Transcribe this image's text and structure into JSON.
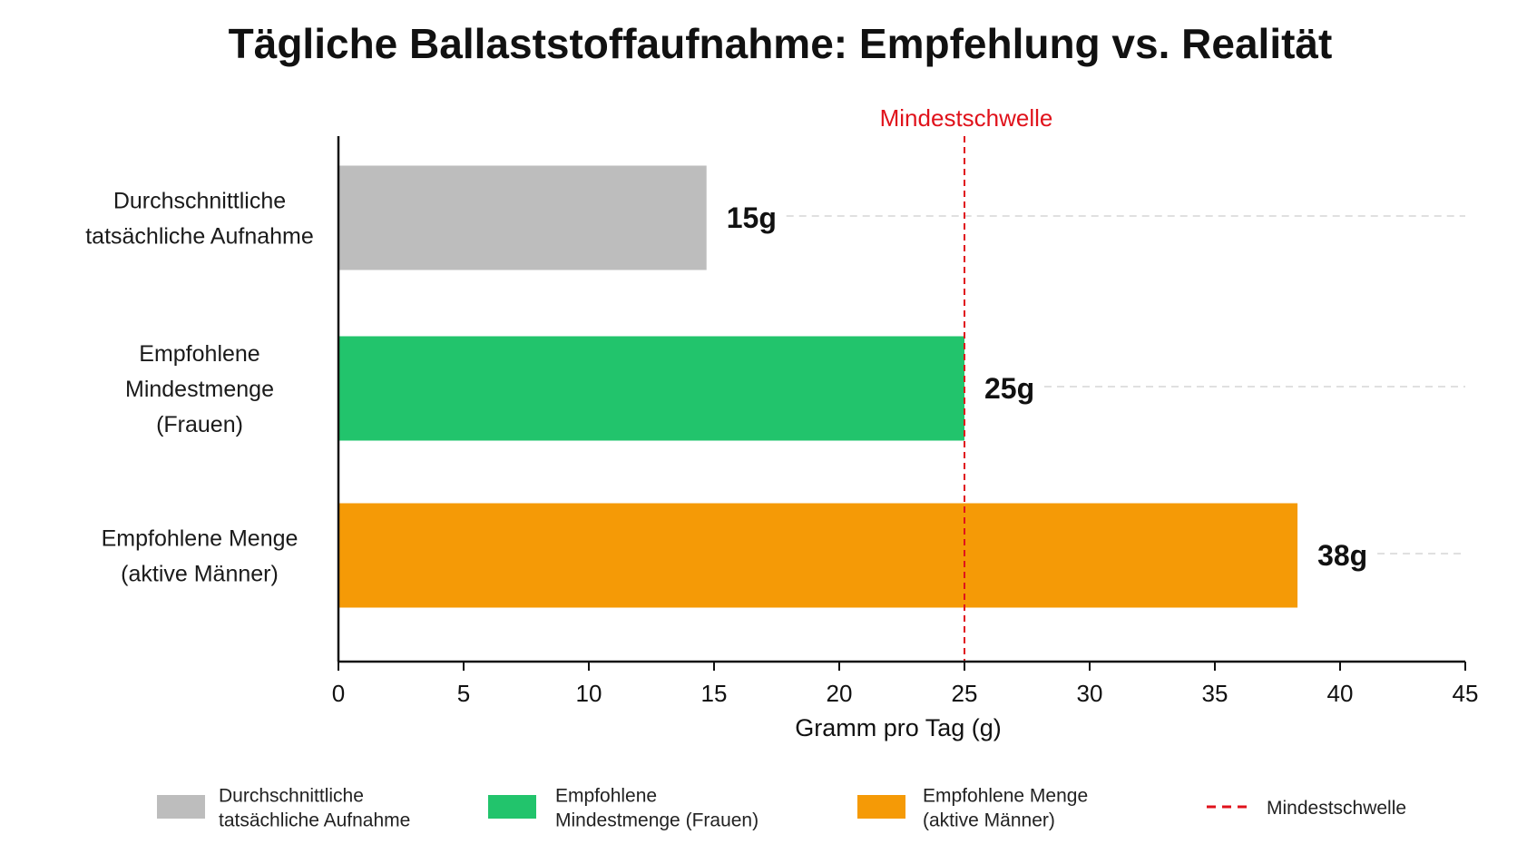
{
  "chart_data": {
    "type": "bar",
    "orientation": "horizontal",
    "title": "Tägliche Ballaststoffaufnahme: Empfehlung vs. Realität",
    "xlabel": "Gramm pro Tag (g)",
    "ylabel": "",
    "xlim": [
      0,
      45
    ],
    "xticks": [
      0,
      5,
      10,
      15,
      20,
      25,
      30,
      35,
      40,
      45
    ],
    "categories": [
      {
        "lines": [
          "Durchschnittliche",
          "tatsächliche Aufnahme"
        ]
      },
      {
        "lines": [
          "Empfohlene",
          "Mindestmenge",
          "(Frauen)"
        ]
      },
      {
        "lines": [
          "Empfohlene Menge",
          "(aktive Männer)"
        ]
      }
    ],
    "values": [
      14.7,
      25,
      38.3
    ],
    "value_labels": [
      "15g",
      "25g",
      "38g"
    ],
    "colors": [
      "#bdbdbd",
      "#22c46c",
      "#f59a06"
    ],
    "threshold": {
      "value": 25,
      "label": "Mindestschwelle",
      "color": "#e0121b",
      "style": "dashed"
    },
    "grid": "dashed guide lines per bar",
    "legend": {
      "position": "bottom",
      "entries": [
        {
          "lines": [
            "Durchschnittliche",
            "tatsächliche Aufnahme"
          ],
          "color": "#bdbdbd",
          "marker": "box"
        },
        {
          "lines": [
            "Empfohlene",
            "Mindestmenge (Frauen)"
          ],
          "color": "#22c46c",
          "marker": "box"
        },
        {
          "lines": [
            "Empfohlene Menge",
            "(aktive Männer)"
          ],
          "color": "#f59a06",
          "marker": "box"
        },
        {
          "lines": [
            "Mindestschwelle"
          ],
          "color": "#e0121b",
          "marker": "dashed-line"
        }
      ]
    }
  }
}
